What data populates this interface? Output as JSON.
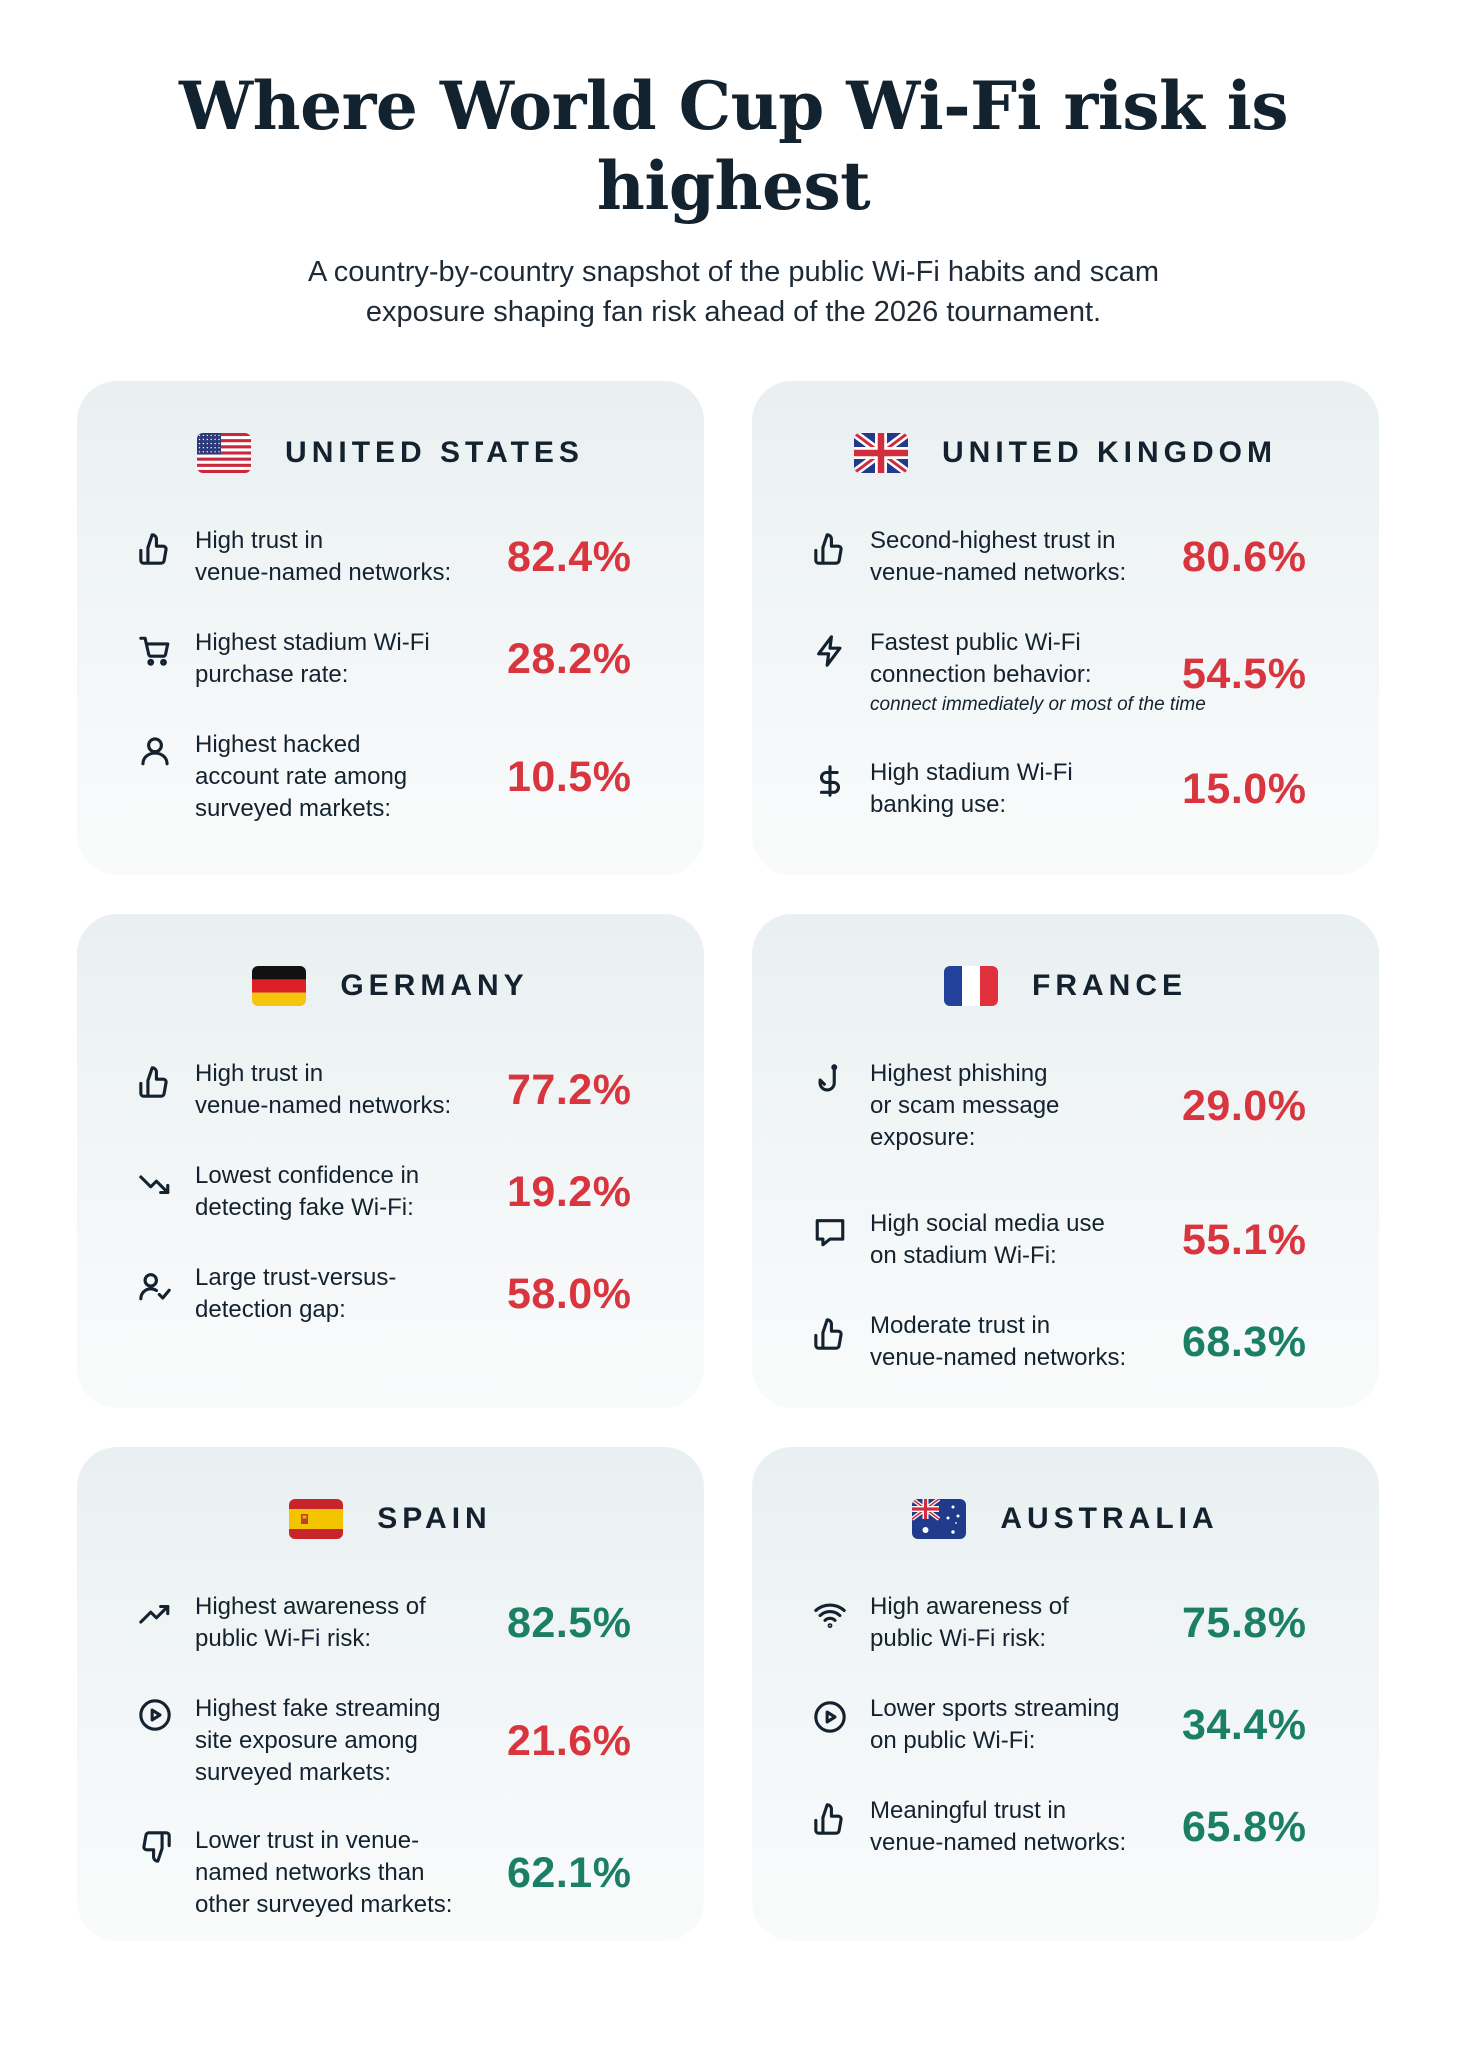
{
  "header": {
    "title_lines": [
      "Where World Cup Wi-Fi risk is",
      "highest"
    ],
    "subtitle_lines": [
      "A country-by-country snapshot of the public Wi-Fi habits and scam",
      "exposure shaping fan risk ahead of the 2026 tournament."
    ]
  },
  "colors": {
    "risk_red": "#d9353e",
    "positive_green": "#1b7f66",
    "card_bg": "#edf3f4",
    "text": "#14222f"
  },
  "cards": [
    {
      "country": "UNITED STATES",
      "flag": "us-flag",
      "stats": [
        {
          "icon": "thumbs-up-icon",
          "label_lines": [
            "High trust in",
            "venue-named networks:"
          ],
          "value": "82.4%",
          "tone": "red"
        },
        {
          "icon": "shopping-cart-icon",
          "label_lines": [
            "Highest stadium Wi-Fi",
            "purchase rate:"
          ],
          "value": "28.2%",
          "tone": "red"
        },
        {
          "icon": "user-icon",
          "label_lines": [
            "Highest hacked",
            "account rate among",
            "surveyed markets:"
          ],
          "value": "10.5%",
          "tone": "red"
        }
      ]
    },
    {
      "country": "UNITED KINGDOM",
      "flag": "uk-flag",
      "stats": [
        {
          "icon": "thumbs-up-icon",
          "label_lines": [
            "Second-highest trust in",
            "venue-named networks:"
          ],
          "value": "80.6%",
          "tone": "red"
        },
        {
          "icon": "lightning-icon",
          "label_lines": [
            "Fastest public Wi-Fi",
            "connection behavior:"
          ],
          "note": "connect immediately or most of the time",
          "value": "54.5%",
          "tone": "red"
        },
        {
          "icon": "dollar-icon",
          "label_lines": [
            "High stadium Wi-Fi",
            "banking use:"
          ],
          "value": "15.0%",
          "tone": "red"
        }
      ]
    },
    {
      "country": "GERMANY",
      "flag": "germany-flag",
      "stats": [
        {
          "icon": "thumbs-up-icon",
          "label_lines": [
            "High trust in",
            "venue-named networks:"
          ],
          "value": "77.2%",
          "tone": "red"
        },
        {
          "icon": "trend-down-icon",
          "label_lines": [
            "Lowest confidence in",
            "detecting fake Wi-Fi:"
          ],
          "value": "19.2%",
          "tone": "red"
        },
        {
          "icon": "user-check-icon",
          "label_lines": [
            "Large trust-versus-",
            "detection gap:"
          ],
          "value": "58.0%",
          "tone": "red"
        }
      ]
    },
    {
      "country": "FRANCE",
      "flag": "france-flag",
      "stats": [
        {
          "icon": "fishing-hook-icon",
          "label_lines": [
            "Highest phishing",
            "or scam message",
            "exposure:"
          ],
          "value": "29.0%",
          "tone": "red"
        },
        {
          "icon": "chat-bubble-icon",
          "label_lines": [
            "High social media use",
            "on stadium Wi-Fi:"
          ],
          "value": "55.1%",
          "tone": "red"
        },
        {
          "icon": "thumbs-up-icon",
          "label_lines": [
            "Moderate trust in",
            "venue-named networks:"
          ],
          "value": "68.3%",
          "tone": "green"
        }
      ]
    },
    {
      "country": "SPAIN",
      "flag": "spain-flag",
      "stats": [
        {
          "icon": "trend-up-icon",
          "label_lines": [
            "Highest awareness of",
            "public Wi-Fi risk:"
          ],
          "value": "82.5%",
          "tone": "green"
        },
        {
          "icon": "play-circle-icon",
          "label_lines": [
            "Highest fake streaming",
            "site exposure among",
            "surveyed markets:"
          ],
          "value": "21.6%",
          "tone": "red"
        },
        {
          "icon": "thumbs-down-icon",
          "label_lines": [
            "Lower trust in venue-",
            "named networks than",
            "other surveyed markets:"
          ],
          "value": "62.1%",
          "tone": "green"
        }
      ]
    },
    {
      "country": "AUSTRALIA",
      "flag": "australia-flag",
      "stats": [
        {
          "icon": "wifi-icon",
          "label_lines": [
            "High awareness of",
            "public Wi-Fi risk:"
          ],
          "value": "75.8%",
          "tone": "green"
        },
        {
          "icon": "play-circle-icon",
          "label_lines": [
            "Lower sports streaming",
            "on public Wi-Fi:"
          ],
          "value": "34.4%",
          "tone": "green"
        },
        {
          "icon": "thumbs-up-icon",
          "label_lines": [
            "Meaningful trust in",
            "venue-named networks:"
          ],
          "value": "65.8%",
          "tone": "green"
        }
      ]
    }
  ]
}
